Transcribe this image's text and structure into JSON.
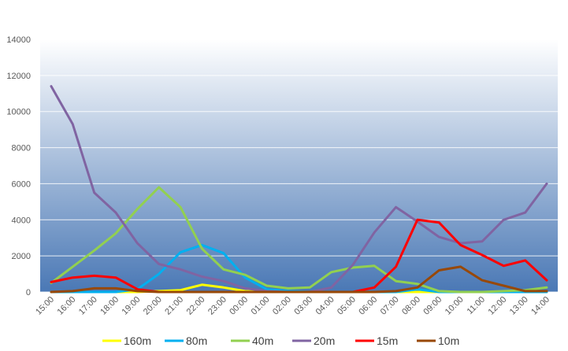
{
  "chart_data": {
    "type": "line",
    "title": "",
    "xlabel": "",
    "ylabel": "",
    "ylim": [
      0,
      14000
    ],
    "yticks": [
      0,
      2000,
      4000,
      6000,
      8000,
      10000,
      12000,
      14000
    ],
    "grid": "horizontal",
    "legend_position": "bottom",
    "plot_background": [
      "#ffffff",
      "#4a78b5"
    ],
    "categories": [
      "15:00",
      "16:00",
      "17:00",
      "18:00",
      "19:00",
      "20:00",
      "21:00",
      "22:00",
      "23:00",
      "00:00",
      "01:00",
      "02:00",
      "03:00",
      "04:00",
      "05:00",
      "06:00",
      "07:00",
      "08:00",
      "09:00",
      "10:00",
      "11:00",
      "12:00",
      "13:00",
      "14:00"
    ],
    "series": [
      {
        "name": "160m",
        "color": "#ffff00",
        "values": [
          0,
          0,
          0,
          0,
          0,
          50,
          100,
          400,
          250,
          50,
          0,
          0,
          0,
          0,
          0,
          0,
          0,
          0,
          0,
          0,
          0,
          0,
          0,
          0
        ]
      },
      {
        "name": "80m",
        "color": "#00b0f0",
        "values": [
          0,
          0,
          0,
          0,
          150,
          1000,
          2200,
          2600,
          2150,
          800,
          150,
          50,
          0,
          0,
          0,
          0,
          0,
          150,
          0,
          0,
          0,
          0,
          0,
          0
        ]
      },
      {
        "name": "40m",
        "color": "#92d050",
        "values": [
          500,
          1400,
          2300,
          3250,
          4600,
          5800,
          4700,
          2400,
          1250,
          950,
          350,
          200,
          250,
          1100,
          1350,
          1450,
          600,
          450,
          50,
          0,
          0,
          50,
          100,
          250
        ]
      },
      {
        "name": "20m",
        "color": "#8064a2",
        "values": [
          11400,
          9300,
          5500,
          4400,
          2700,
          1550,
          1250,
          850,
          600,
          200,
          50,
          0,
          0,
          250,
          1500,
          3300,
          4700,
          3900,
          3050,
          2700,
          2800,
          4000,
          4400,
          6000
        ]
      },
      {
        "name": "15m",
        "color": "#ff0000",
        "values": [
          550,
          800,
          900,
          800,
          150,
          0,
          0,
          0,
          0,
          0,
          0,
          0,
          0,
          0,
          0,
          250,
          1400,
          4000,
          3850,
          2600,
          2050,
          1450,
          1750,
          650
        ]
      },
      {
        "name": "10m",
        "color": "#984807",
        "values": [
          0,
          50,
          200,
          200,
          50,
          0,
          0,
          0,
          0,
          0,
          0,
          0,
          0,
          0,
          0,
          0,
          50,
          250,
          1200,
          1400,
          650,
          350,
          50,
          50
        ]
      }
    ]
  }
}
